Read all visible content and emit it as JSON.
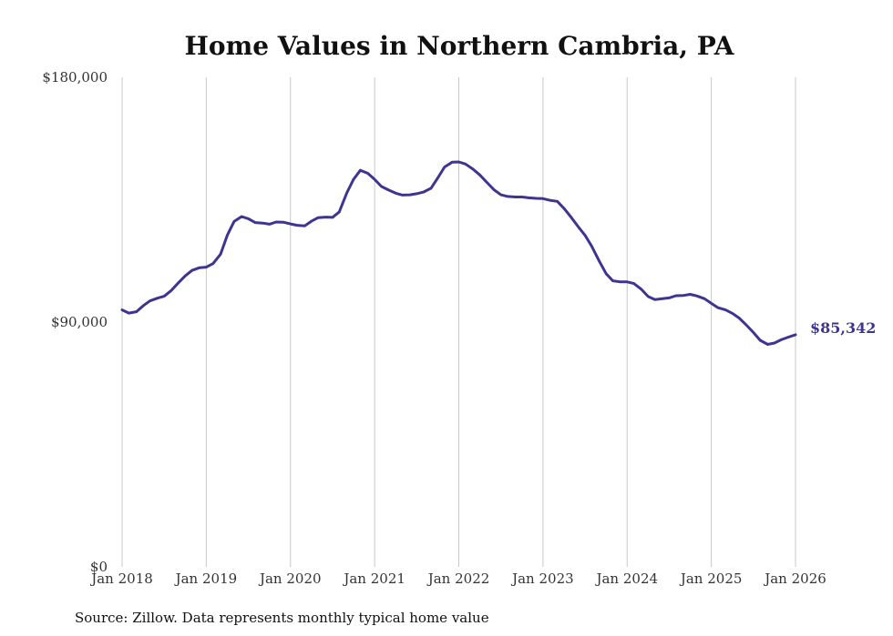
{
  "chart_data": {
    "type": "line",
    "title": "Home Values in Northern Cambria, PA",
    "source": "Source: Zillow. Data represents monthly typical home value",
    "ylim": [
      0,
      180000
    ],
    "y_ticks": [
      {
        "value": 0,
        "label": "$0"
      },
      {
        "value": 90000,
        "label": "$90,000"
      },
      {
        "value": 180000,
        "label": "$180,000"
      }
    ],
    "x_ticks": [
      {
        "value": 2018,
        "label": "Jan 2018"
      },
      {
        "value": 2019,
        "label": "Jan 2019"
      },
      {
        "value": 2020,
        "label": "Jan 2020"
      },
      {
        "value": 2021,
        "label": "Jan 2021"
      },
      {
        "value": 2022,
        "label": "Jan 2022"
      },
      {
        "value": 2023,
        "label": "Jan 2023"
      },
      {
        "value": 2024,
        "label": "Jan 2024"
      },
      {
        "value": 2025,
        "label": "Jan 2025"
      },
      {
        "value": 2026,
        "label": "Jan 2026"
      }
    ],
    "xlim": [
      2018,
      2026
    ],
    "grid": "vertical",
    "line_color": "#3d3590",
    "end_label": "$85,342",
    "series": [
      {
        "x": [
          2018.0,
          2018.08,
          2018.17,
          2018.25,
          2018.33,
          2018.42,
          2018.5,
          2018.58,
          2018.67,
          2018.75,
          2018.83,
          2018.92,
          2019.0,
          2019.08,
          2019.17,
          2019.25,
          2019.33,
          2019.42,
          2019.5,
          2019.58,
          2019.67,
          2019.75,
          2019.83,
          2019.92,
          2020.0,
          2020.08,
          2020.17,
          2020.25,
          2020.33,
          2020.42,
          2020.5,
          2020.58,
          2020.67,
          2020.75,
          2020.83,
          2020.92,
          2021.0,
          2021.08,
          2021.17,
          2021.25,
          2021.33,
          2021.42,
          2021.5,
          2021.58,
          2021.67,
          2021.75,
          2021.83,
          2021.92,
          2022.0,
          2022.08,
          2022.17,
          2022.25,
          2022.33,
          2022.42,
          2022.5,
          2022.58,
          2022.67,
          2022.75,
          2022.83,
          2022.92,
          2023.0,
          2023.08,
          2023.17,
          2023.25,
          2023.33,
          2023.42,
          2023.5,
          2023.58,
          2023.67,
          2023.75,
          2023.83,
          2023.92,
          2024.0,
          2024.08,
          2024.17,
          2024.25,
          2024.33,
          2024.42,
          2024.5,
          2024.58,
          2024.67,
          2024.75,
          2024.83,
          2024.92,
          2025.0,
          2025.08,
          2025.17,
          2025.25,
          2025.33,
          2025.42,
          2025.5,
          2025.58,
          2025.67,
          2025.75,
          2025.83,
          2025.92,
          2026.0
        ],
        "y": [
          94500,
          93300,
          93800,
          96000,
          97800,
          98800,
          99500,
          101500,
          104500,
          107000,
          109000,
          110000,
          110200,
          111500,
          115000,
          122000,
          127000,
          128800,
          128000,
          126600,
          126400,
          126000,
          126800,
          126700,
          126100,
          125600,
          125400,
          127100,
          128400,
          128600,
          128500,
          130500,
          137500,
          142500,
          145800,
          144700,
          142500,
          139900,
          138500,
          137400,
          136700,
          136800,
          137200,
          137800,
          139200,
          143000,
          147000,
          148800,
          148900,
          148100,
          146200,
          144100,
          141500,
          138600,
          136800,
          136200,
          136000,
          136000,
          135700,
          135500,
          135400,
          134800,
          134400,
          131800,
          128700,
          125000,
          121900,
          117800,
          112300,
          107800,
          105200,
          104800,
          104800,
          104200,
          102000,
          99400,
          98300,
          98600,
          98900,
          99700,
          99800,
          100200,
          99600,
          98600,
          96900,
          95300,
          94500,
          93200,
          91500,
          88800,
          86200,
          83300,
          81800,
          82300,
          83500,
          84500,
          85342
        ]
      }
    ]
  }
}
